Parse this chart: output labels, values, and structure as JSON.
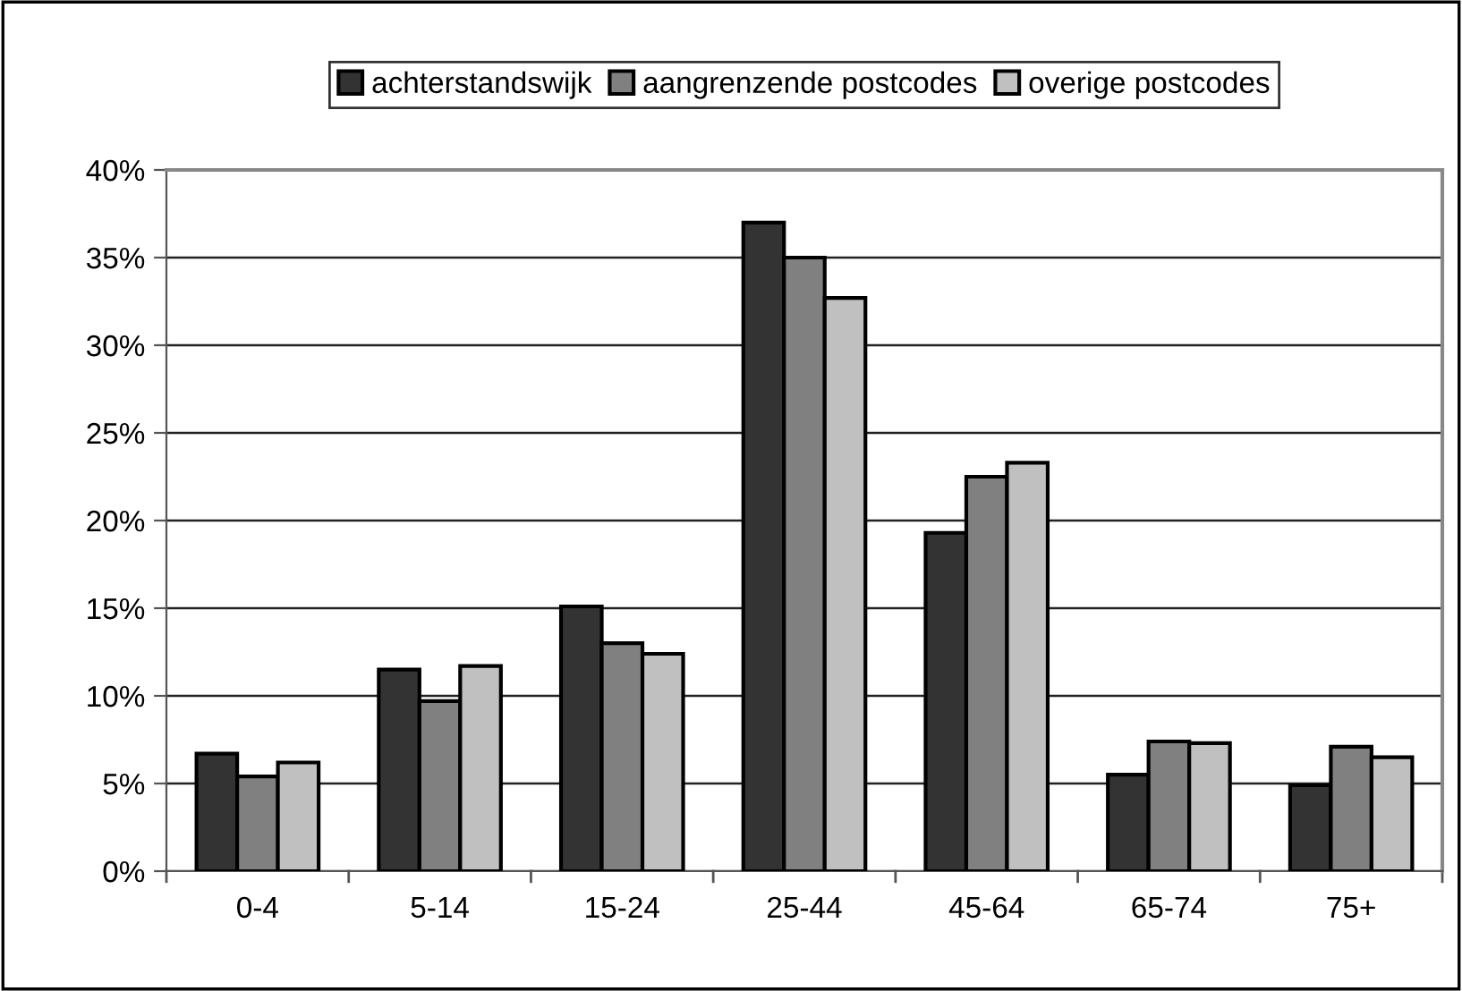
{
  "chart_data": {
    "type": "bar",
    "categories": [
      "0-4",
      "5-14",
      "15-24",
      "25-44",
      "45-64",
      "65-74",
      "75+"
    ],
    "series": [
      {
        "name": "achterstandswijk",
        "color": "#333333",
        "values": [
          6.7,
          11.5,
          15.1,
          37.0,
          19.3,
          5.5,
          4.9
        ]
      },
      {
        "name": "aangrenzende postcodes",
        "color": "#808080",
        "values": [
          5.4,
          9.7,
          13.0,
          35.0,
          22.5,
          7.4,
          7.1
        ]
      },
      {
        "name": "overige postcodes",
        "color": "#c0c0c0",
        "values": [
          6.2,
          11.7,
          12.4,
          32.7,
          23.3,
          7.3,
          6.5
        ]
      }
    ],
    "ylim": [
      0,
      40
    ],
    "yticks": [
      {
        "value": 0,
        "label": "0%"
      },
      {
        "value": 5,
        "label": "5%"
      },
      {
        "value": 10,
        "label": "10%"
      },
      {
        "value": 15,
        "label": "15%"
      },
      {
        "value": 20,
        "label": "20%"
      },
      {
        "value": 25,
        "label": "25%"
      },
      {
        "value": 30,
        "label": "30%"
      },
      {
        "value": 35,
        "label": "35%"
      },
      {
        "value": 40,
        "label": "40%"
      }
    ],
    "grid": "y",
    "legend": "top"
  }
}
